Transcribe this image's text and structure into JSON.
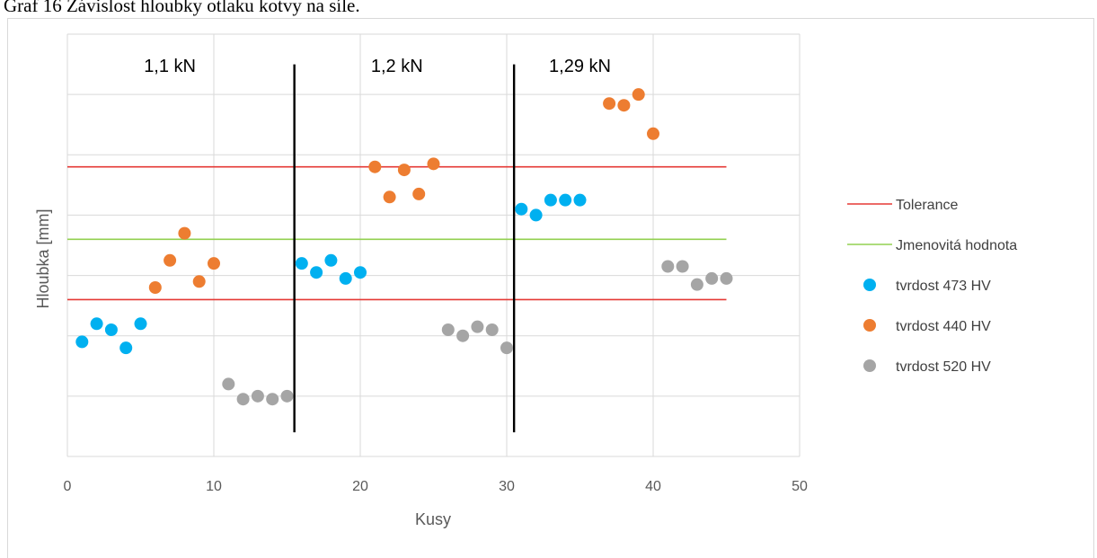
{
  "caption": "Graf 16 Závislost hloubky otlaku kotvy na síle.",
  "colors": {
    "tolerance": "#e53935",
    "nominal": "#92d050",
    "hv473": "#00b0f0",
    "hv440": "#ed7d31",
    "hv520": "#a5a5a5",
    "divider": "#000000",
    "grid": "#d9d9d9"
  },
  "chart_data": {
    "type": "scatter",
    "xlabel": "Kusy",
    "ylabel": "Hloubka [mm]",
    "xlim": [
      0,
      50
    ],
    "xticks": [
      0,
      10,
      20,
      30,
      40,
      50
    ],
    "ylim": [
      0,
      7
    ],
    "y_tick_labels_shown": false,
    "grid": true,
    "legend_position": "right",
    "annotations": [
      {
        "text": "1,1  kN",
        "x": 7
      },
      {
        "text": "1,2 kN",
        "x": 22.5
      },
      {
        "text": "1,29 kN",
        "x": 35
      }
    ],
    "dividers": [
      {
        "x": 15.5,
        "y": [
          0.4,
          6.5
        ]
      },
      {
        "x": 30.5,
        "y": [
          0.4,
          6.5
        ]
      }
    ],
    "series": [
      {
        "name": "Tolerance",
        "kind": "line",
        "color": "#e53935",
        "lines": [
          {
            "x": [
              0,
              45
            ],
            "y": [
              4.8,
              4.8
            ]
          },
          {
            "x": [
              0,
              45
            ],
            "y": [
              2.6,
              2.6
            ]
          }
        ]
      },
      {
        "name": "Jmenovitá hodnota",
        "kind": "line",
        "color": "#92d050",
        "lines": [
          {
            "x": [
              0,
              45
            ],
            "y": [
              3.6,
              3.6
            ]
          }
        ]
      },
      {
        "name": "tvrdost 473 HV",
        "kind": "scatter",
        "color": "#00b0f0",
        "x": [
          1,
          2,
          3,
          4,
          5,
          16,
          17,
          18,
          19,
          20,
          31,
          32,
          33,
          34,
          35
        ],
        "y": [
          1.9,
          2.2,
          2.1,
          1.8,
          2.2,
          3.2,
          3.05,
          3.25,
          2.95,
          3.05,
          4.1,
          4.0,
          4.25,
          4.25,
          4.25
        ]
      },
      {
        "name": "tvrdost 440 HV",
        "kind": "scatter",
        "color": "#ed7d31",
        "x": [
          6,
          7,
          8,
          9,
          10,
          21,
          22,
          23,
          24,
          25,
          37,
          38,
          39,
          40
        ],
        "y": [
          2.8,
          3.25,
          3.7,
          2.9,
          3.2,
          4.8,
          4.3,
          4.75,
          4.35,
          4.85,
          5.85,
          5.82,
          6.0,
          5.35
        ]
      },
      {
        "name": "tvrdost 520 HV",
        "kind": "scatter",
        "color": "#a5a5a5",
        "x": [
          11,
          12,
          13,
          14,
          15,
          26,
          27,
          28,
          29,
          30,
          41,
          42,
          43,
          44,
          45
        ],
        "y": [
          1.2,
          0.95,
          1.0,
          0.95,
          1.0,
          2.1,
          2.0,
          2.15,
          2.1,
          1.8,
          3.15,
          3.15,
          2.85,
          2.95,
          2.95
        ]
      }
    ]
  }
}
